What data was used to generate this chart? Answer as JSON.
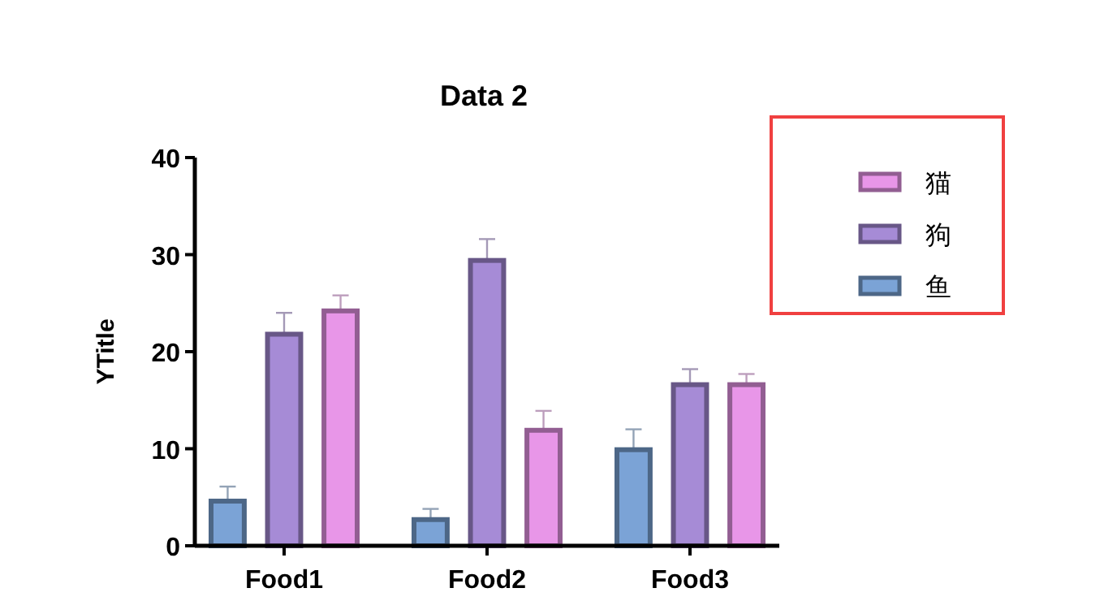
{
  "chart_data": {
    "type": "bar",
    "title": "Data 2",
    "ylabel": "YTitle",
    "categories": [
      "Food1",
      "Food2",
      "Food3"
    ],
    "series": [
      {
        "name": "鱼",
        "color": "#7ba3d6",
        "values": [
          4.6,
          2.7,
          9.9
        ],
        "errors": [
          [
            4.6,
            6.1
          ],
          [
            2.7,
            3.8
          ],
          [
            9.9,
            12.0
          ]
        ]
      },
      {
        "name": "狗",
        "color": "#a68bd6",
        "values": [
          21.8,
          29.4,
          16.6
        ],
        "errors": [
          [
            21.8,
            24.0
          ],
          [
            29.4,
            31.6
          ],
          [
            16.6,
            18.2
          ]
        ]
      },
      {
        "name": "猫",
        "color": "#e896e8",
        "values": [
          24.2,
          11.9,
          16.6
        ],
        "errors": [
          [
            24.2,
            25.8
          ],
          [
            11.9,
            13.9
          ],
          [
            16.6,
            17.7
          ]
        ]
      }
    ],
    "ylim": [
      0,
      40
    ],
    "yticks": [
      0,
      10,
      20,
      30,
      40
    ],
    "grid": false,
    "legend": "top right"
  }
}
